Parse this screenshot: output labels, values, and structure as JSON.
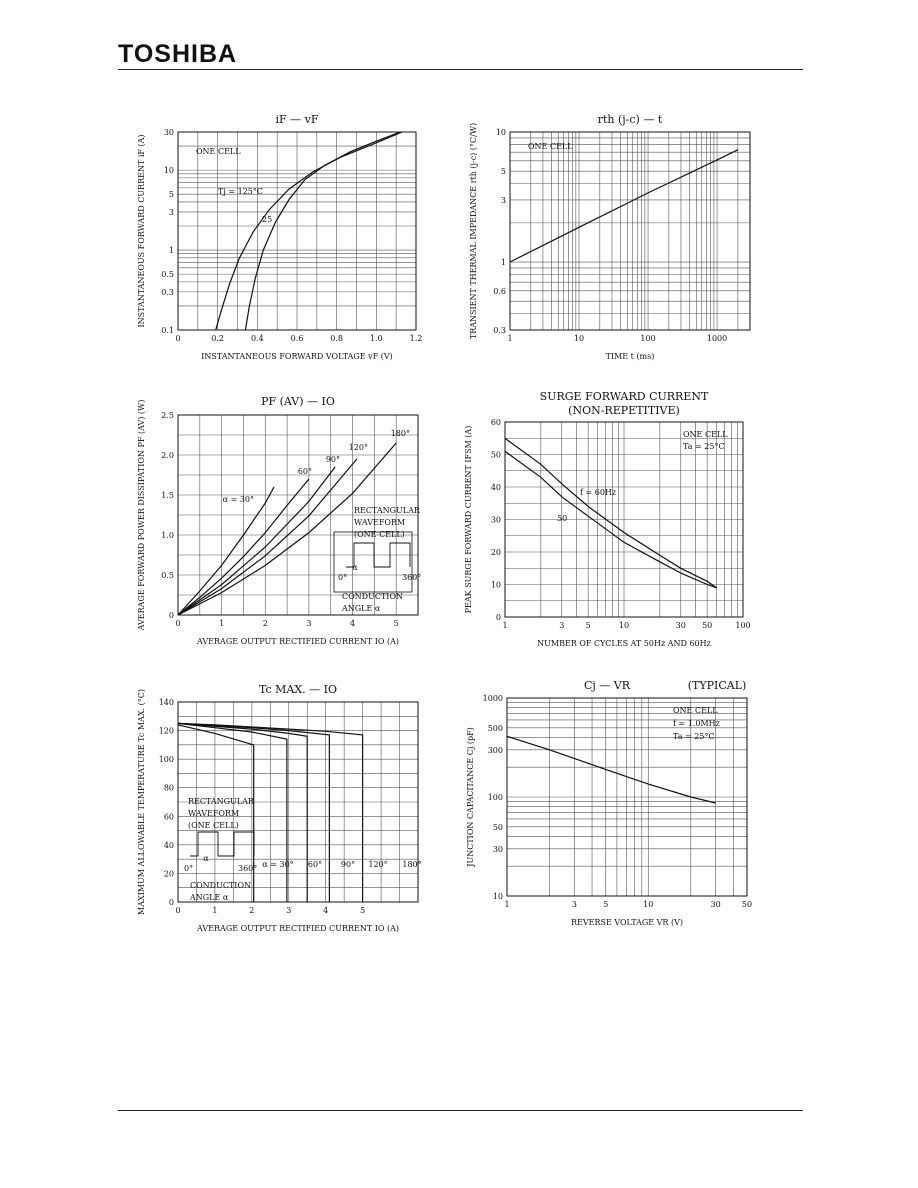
{
  "header": {
    "logo": "TOSHIBA"
  },
  "chart_data": [
    {
      "id": "c1",
      "type": "line",
      "title": "iF  —  vF",
      "xlabel": "INSTANTANEOUS FORWARD VOLTAGE   vF   (V)",
      "ylabel": "INSTANTANEOUS FORWARD CURRENT  iF  (A)",
      "xscale": "linear",
      "yscale": "log",
      "xlim": [
        0,
        1.2
      ],
      "ylim": [
        0.1,
        30
      ],
      "xticks": [
        {
          "v": 0,
          "l": "0"
        },
        {
          "v": 0.2,
          "l": "0.2"
        },
        {
          "v": 0.4,
          "l": "0.4"
        },
        {
          "v": 0.6,
          "l": "0.6"
        },
        {
          "v": 0.8,
          "l": "0.8"
        },
        {
          "v": 1.0,
          "l": "1.0"
        },
        {
          "v": 1.2,
          "l": "1.2"
        }
      ],
      "yticks": [
        {
          "v": 0.1,
          "l": "0.1"
        },
        {
          "v": 0.3,
          "l": "0.3"
        },
        {
          "v": 0.5,
          "l": "0.5"
        },
        {
          "v": 1,
          "l": "1"
        },
        {
          "v": 3,
          "l": "3"
        },
        {
          "v": 5,
          "l": "5"
        },
        {
          "v": 10,
          "l": "10"
        },
        {
          "v": 30,
          "l": "30"
        }
      ],
      "series": [
        {
          "name": "Tj = 125°C",
          "x": [
            0.19,
            0.22,
            0.26,
            0.31,
            0.38,
            0.46,
            0.56,
            0.68,
            0.82,
            0.98,
            1.13
          ],
          "y": [
            0.1,
            0.18,
            0.38,
            0.8,
            1.7,
            3.2,
            5.8,
            9.5,
            14.5,
            21,
            30
          ]
        },
        {
          "name": "25",
          "x": [
            0.34,
            0.36,
            0.39,
            0.43,
            0.49,
            0.56,
            0.64,
            0.74,
            0.87,
            1.0,
            1.12
          ],
          "y": [
            0.1,
            0.2,
            0.45,
            1.0,
            2.2,
            4.3,
            7.6,
            11.5,
            17,
            23,
            30
          ]
        }
      ],
      "annotations": [
        "ONE CELL",
        "Tj = 125°C",
        "25"
      ]
    },
    {
      "id": "c2",
      "type": "line",
      "title": "rth (j-c)  —  t",
      "xlabel": "TIME   t   (ms)",
      "ylabel": "TRANSIENT THERMAL IMPEDANCE  rth (j-c)  (°C/W)",
      "xscale": "log",
      "yscale": "log",
      "xlim": [
        1,
        3000
      ],
      "ylim": [
        0.3,
        10
      ],
      "xticks": [
        {
          "v": 1,
          "l": "1"
        },
        {
          "v": 10,
          "l": "10"
        },
        {
          "v": 100,
          "l": "100"
        },
        {
          "v": 1000,
          "l": "1000"
        }
      ],
      "yticks": [
        {
          "v": 0.3,
          "l": "0.3"
        },
        {
          "v": 0.6,
          "l": "0.6"
        },
        {
          "v": 1,
          "l": "1"
        },
        {
          "v": 3,
          "l": "3"
        },
        {
          "v": 5,
          "l": "5"
        },
        {
          "v": 10,
          "l": "10"
        }
      ],
      "series": [
        {
          "name": "ONE CELL",
          "x": [
            1,
            10,
            100,
            1000,
            2000
          ],
          "y": [
            1,
            1.85,
            3.4,
            6.1,
            7.3
          ]
        }
      ],
      "annotations": [
        "ONE CELL"
      ]
    },
    {
      "id": "c3",
      "type": "line",
      "title": "PF (AV)  —  IO",
      "xlabel": "AVERAGE OUTPUT RECTIFIED CURRENT   IO   (A)",
      "ylabel": "AVERAGE FORWARD POWER DISSIPATION  PF (AV)  (W)",
      "xscale": "linear",
      "yscale": "linear",
      "xlim": [
        0,
        5.5
      ],
      "ylim": [
        0,
        2.5
      ],
      "xticks": [
        {
          "v": 0,
          "l": "0"
        },
        {
          "v": 1,
          "l": "1"
        },
        {
          "v": 2,
          "l": "2"
        },
        {
          "v": 3,
          "l": "3"
        },
        {
          "v": 4,
          "l": "4"
        },
        {
          "v": 5,
          "l": "5"
        }
      ],
      "yticks": [
        {
          "v": 0,
          "l": "0"
        },
        {
          "v": 0.5,
          "l": "0.5"
        },
        {
          "v": 1.0,
          "l": "1.0"
        },
        {
          "v": 1.5,
          "l": "1.5"
        },
        {
          "v": 2.0,
          "l": "2.0"
        },
        {
          "v": 2.5,
          "l": "2.5"
        }
      ],
      "series": [
        {
          "name": "α = 30°",
          "x": [
            0,
            0.5,
            1,
            1.5,
            2,
            2.2
          ],
          "y": [
            0,
            0.3,
            0.62,
            1.0,
            1.4,
            1.6
          ]
        },
        {
          "name": "60°",
          "x": [
            0,
            0.5,
            1,
            1.5,
            2,
            2.5,
            3.0
          ],
          "y": [
            0,
            0.22,
            0.46,
            0.73,
            1.03,
            1.37,
            1.7
          ]
        },
        {
          "name": "90°",
          "x": [
            0,
            1,
            2,
            3,
            3.6
          ],
          "y": [
            0,
            0.38,
            0.85,
            1.42,
            1.85
          ]
        },
        {
          "name": "120°",
          "x": [
            0,
            1,
            2,
            3,
            4.1
          ],
          "y": [
            0,
            0.33,
            0.74,
            1.24,
            1.95
          ]
        },
        {
          "name": "180°",
          "x": [
            0,
            1,
            2,
            3,
            4,
            5.0
          ],
          "y": [
            0,
            0.28,
            0.62,
            1.03,
            1.52,
            2.15
          ]
        }
      ],
      "annotations": [
        "α = 30°",
        "60°",
        "90°",
        "120°",
        "180°",
        "RECTANGULAR",
        "WAVEFORM",
        "(ONE CELL)",
        "0°",
        "α",
        "360°",
        "CONDUCTION",
        "ANGLE α"
      ]
    },
    {
      "id": "c4",
      "type": "line",
      "title": "SURGE FORWARD CURRENT",
      "subtitle": "(NON-REPETITIVE)",
      "xlabel": "NUMBER OF CYCLES AT 50Hz AND 60Hz",
      "ylabel": "PEAK SURGE FORWARD CURRENT  IFSM  (A)",
      "xscale": "log",
      "yscale": "linear",
      "xlim": [
        1,
        100
      ],
      "ylim": [
        0,
        60
      ],
      "xticks": [
        {
          "v": 1,
          "l": "1"
        },
        {
          "v": 3,
          "l": "3"
        },
        {
          "v": 5,
          "l": "5"
        },
        {
          "v": 10,
          "l": "10"
        },
        {
          "v": 30,
          "l": "30"
        },
        {
          "v": 50,
          "l": "50"
        },
        {
          "v": 100,
          "l": "100"
        }
      ],
      "yticks": [
        {
          "v": 0,
          "l": "0"
        },
        {
          "v": 10,
          "l": "10"
        },
        {
          "v": 20,
          "l": "20"
        },
        {
          "v": 30,
          "l": "30"
        },
        {
          "v": 40,
          "l": "40"
        },
        {
          "v": 50,
          "l": "50"
        },
        {
          "v": 60,
          "l": "60"
        }
      ],
      "series": [
        {
          "name": "60Hz",
          "x": [
            1,
            2,
            3,
            5,
            10,
            20,
            30,
            50,
            60
          ],
          "y": [
            55,
            47,
            41,
            34,
            26,
            19,
            15,
            11,
            9
          ]
        },
        {
          "name": "50",
          "x": [
            1,
            2,
            3,
            5,
            10,
            20,
            30,
            50,
            60
          ],
          "y": [
            51,
            43,
            37,
            31,
            23,
            17,
            13.5,
            10,
            9
          ]
        }
      ],
      "annotations": [
        "ONE CELL",
        "Ta = 25°C",
        "f = 60Hz",
        "50"
      ]
    },
    {
      "id": "c5",
      "type": "line",
      "title": "Tc MAX.  —  IO",
      "xlabel": "AVERAGE OUTPUT RECTIFIED CURRENT   IO   (A)",
      "ylabel": "MAXIMUM ALLOWABLE TEMPERATURE  Tc MAX.  (°C)",
      "xscale": "linear",
      "yscale": "linear",
      "xlim": [
        0,
        6.5
      ],
      "ylim": [
        0,
        140
      ],
      "xticks": [
        {
          "v": 0,
          "l": "0"
        },
        {
          "v": 1,
          "l": "1"
        },
        {
          "v": 2,
          "l": "2"
        },
        {
          "v": 3,
          "l": "3"
        },
        {
          "v": 4,
          "l": "4"
        },
        {
          "v": 5,
          "l": "5"
        }
      ],
      "yticks": [
        {
          "v": 0,
          "l": "0"
        },
        {
          "v": 20,
          "l": "20"
        },
        {
          "v": 40,
          "l": "40"
        },
        {
          "v": 60,
          "l": "60"
        },
        {
          "v": 80,
          "l": "80"
        },
        {
          "v": 100,
          "l": "100"
        },
        {
          "v": 120,
          "l": "120"
        },
        {
          "v": 140,
          "l": "140"
        }
      ],
      "series": [
        {
          "name": "α = 30°",
          "x": [
            0,
            1,
            2.05,
            2.05
          ],
          "y": [
            124,
            118,
            110,
            0
          ]
        },
        {
          "name": "60°",
          "x": [
            0,
            1,
            2,
            2.95,
            2.95
          ],
          "y": [
            125,
            122,
            119,
            114,
            0
          ]
        },
        {
          "name": "90°",
          "x": [
            0,
            1,
            2,
            3,
            3.5,
            3.5
          ],
          "y": [
            125,
            123,
            121,
            118,
            116,
            0
          ]
        },
        {
          "name": "120°",
          "x": [
            0,
            1,
            2,
            3,
            4.1,
            4.1
          ],
          "y": [
            125,
            123.5,
            122,
            120,
            117,
            0
          ]
        },
        {
          "name": "180°",
          "x": [
            0,
            1,
            2,
            3,
            4,
            5.0,
            5.0
          ],
          "y": [
            125,
            124,
            122.5,
            121,
            119.5,
            117,
            0
          ]
        }
      ],
      "annotations": [
        "RECTANGULAR",
        "WAVEFORM",
        "(ONE CELL)",
        "0°",
        "α",
        "360°",
        "CONDUCTION",
        "ANGLE α",
        "α = 30°",
        "60°",
        "90°",
        "120°",
        "180°"
      ]
    },
    {
      "id": "c6",
      "type": "line",
      "title": "Cj  —  VR",
      "subtitle": "(TYPICAL)",
      "xlabel": "REVERSE VOLTAGE   VR   (V)",
      "ylabel": "JUNCTION CAPACITANCE   Cj   (pF)",
      "xscale": "log",
      "yscale": "log",
      "xlim": [
        1,
        50
      ],
      "ylim": [
        10,
        1000
      ],
      "xticks": [
        {
          "v": 1,
          "l": "1"
        },
        {
          "v": 3,
          "l": "3"
        },
        {
          "v": 5,
          "l": "5"
        },
        {
          "v": 10,
          "l": "10"
        },
        {
          "v": 30,
          "l": "30"
        },
        {
          "v": 50,
          "l": "50"
        }
      ],
      "yticks": [
        {
          "v": 10,
          "l": "10"
        },
        {
          "v": 30,
          "l": "30"
        },
        {
          "v": 50,
          "l": "50"
        },
        {
          "v": 100,
          "l": "100"
        },
        {
          "v": 300,
          "l": "300"
        },
        {
          "v": 500,
          "l": "500"
        },
        {
          "v": 1000,
          "l": "1000"
        }
      ],
      "series": [
        {
          "name": "ONE CELL",
          "x": [
            1,
            2,
            5,
            10,
            20,
            30
          ],
          "y": [
            410,
            300,
            190,
            135,
            100,
            87
          ]
        }
      ],
      "annotations": [
        "ONE CELL",
        "f = 1.0MHz",
        "Ta = 25°C"
      ]
    }
  ]
}
